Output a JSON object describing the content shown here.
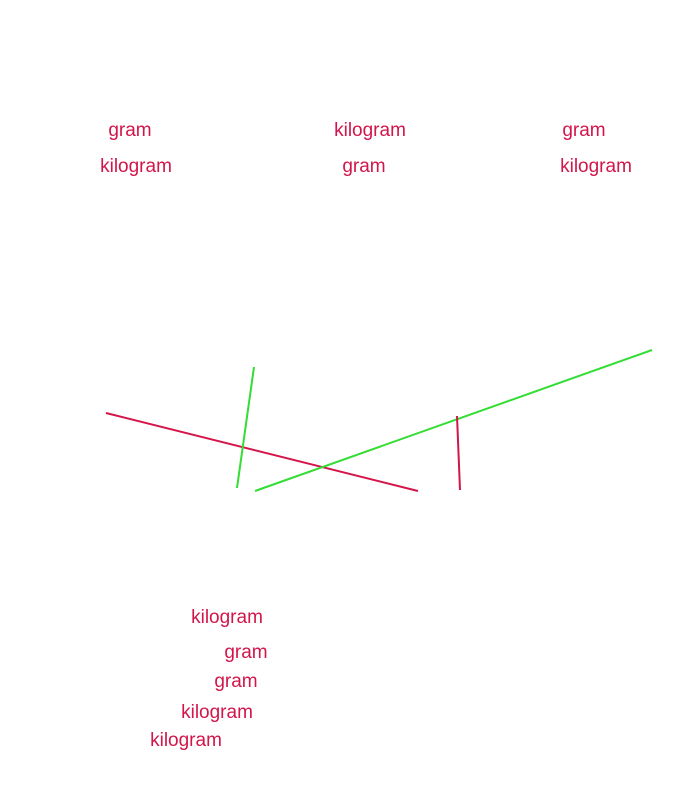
{
  "labels": [
    "gram",
    "kilogram",
    "kilogram",
    "gram",
    "gram",
    "kilogram",
    "kilogram",
    "gram",
    "gram",
    "kilogram",
    "kilogram"
  ]
}
